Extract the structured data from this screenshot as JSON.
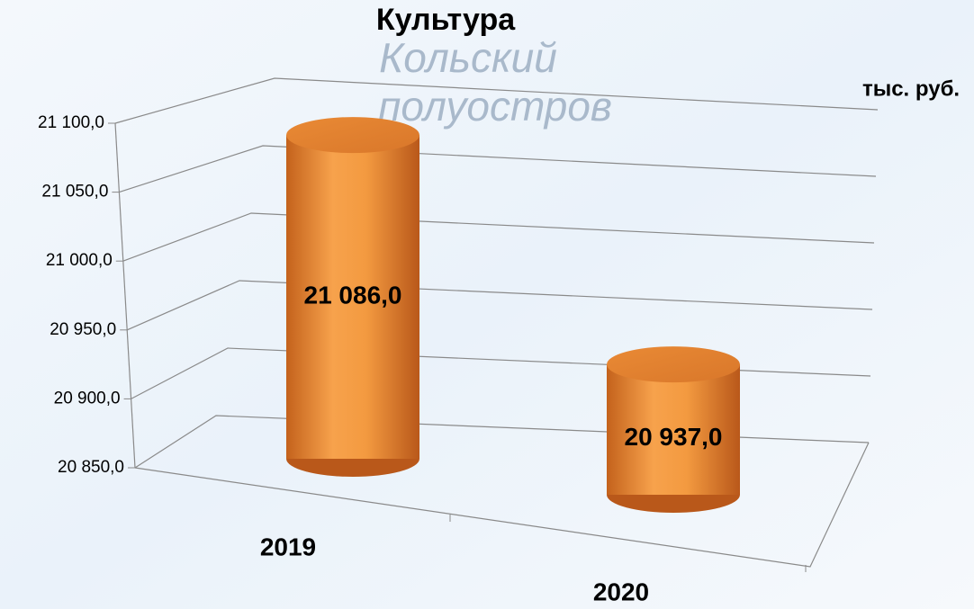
{
  "chart_data": {
    "type": "bar3d",
    "title": "Культура",
    "unit_label": "тыс. руб.",
    "background_labels": [
      "Кольский",
      "полуостров"
    ],
    "categories": [
      "2019",
      "2020"
    ],
    "values": [
      21086,
      20937
    ],
    "value_labels": [
      "21 086,0",
      "20 937,0"
    ],
    "color": "#f39a40",
    "ylim": [
      20850,
      21100
    ],
    "yticks": [
      {
        "value": 20850,
        "label": "20 850,0"
      },
      {
        "value": 20900,
        "label": "20 900,0"
      },
      {
        "value": 20950,
        "label": "20 950,0"
      },
      {
        "value": 21000,
        "label": "21 000,0"
      },
      {
        "value": 21050,
        "label": "21 050,0"
      },
      {
        "value": 21100,
        "label": "21 100,0"
      }
    ],
    "grid": true
  }
}
